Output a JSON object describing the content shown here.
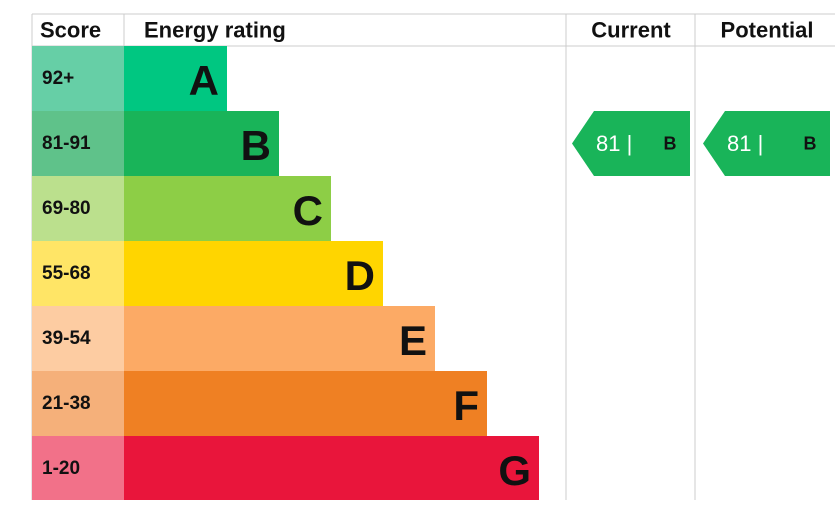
{
  "header": {
    "score": "Score",
    "rating": "Energy rating",
    "current": "Current",
    "potential": "Potential"
  },
  "bands": [
    {
      "score": "92+",
      "letter": "A",
      "color": "#00c781",
      "light": "#66cfa6"
    },
    {
      "score": "81-91",
      "letter": "B",
      "color": "#19b459",
      "light": "#5fc28a"
    },
    {
      "score": "69-80",
      "letter": "C",
      "color": "#8dce46",
      "light": "#bbe08d"
    },
    {
      "score": "55-68",
      "letter": "D",
      "color": "#ffd500",
      "light": "#ffe566"
    },
    {
      "score": "39-54",
      "letter": "E",
      "color": "#fcaa65",
      "light": "#fdcca2"
    },
    {
      "score": "21-38",
      "letter": "F",
      "color": "#ef8023",
      "light": "#f5b07a"
    },
    {
      "score": "1-20",
      "letter": "G",
      "color": "#e9153b",
      "light": "#f27189"
    }
  ],
  "current": {
    "value": "81 |",
    "band": "B"
  },
  "potential": {
    "value": "81 |",
    "band": "B"
  }
}
